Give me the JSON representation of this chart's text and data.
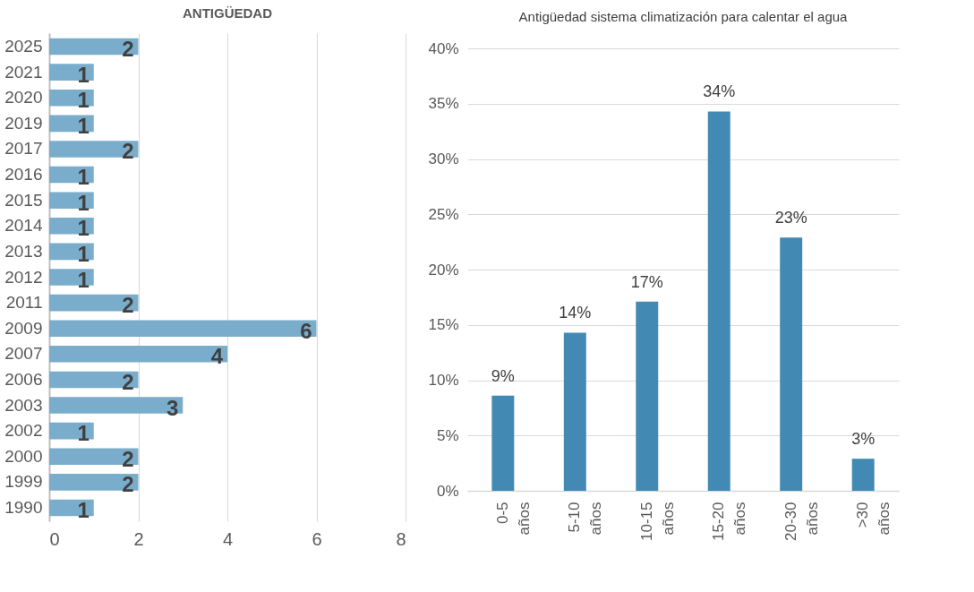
{
  "chart_data": [
    {
      "type": "bar",
      "title": "ANTIGÜEDAD",
      "orientation": "horizontal",
      "categories": [
        "2025",
        "2021",
        "2020",
        "2019",
        "2017",
        "2016",
        "2015",
        "2014",
        "2013",
        "2012",
        "2011",
        "2009",
        "2007",
        "2006",
        "2003",
        "2002",
        "2000",
        "1999",
        "1990"
      ],
      "values": [
        2,
        1,
        1,
        1,
        2,
        1,
        1,
        1,
        1,
        1,
        2,
        6,
        4,
        2,
        3,
        1,
        2,
        2,
        1
      ],
      "color": "#7aadcc",
      "xlim": [
        0,
        8
      ],
      "xticks": [
        0,
        2,
        4,
        6,
        8
      ],
      "grid": "x",
      "data_labels": true
    },
    {
      "type": "bar",
      "title": "Antigüedad sistema climatización para calentar el agua",
      "categories": [
        "0-5 años",
        "5-10 años",
        "10-15 años",
        "15-20 años",
        "20-30 años",
        ">30 años"
      ],
      "values": [
        8.6,
        14.3,
        17.1,
        34.3,
        22.9,
        2.9
      ],
      "value_labels": [
        "9%",
        "14%",
        "17%",
        "34%",
        "23%",
        "3%"
      ],
      "color": "#4289b4",
      "ylim": [
        0,
        40
      ],
      "yticks": [
        {
          "value": 0,
          "label": "0%"
        },
        {
          "value": 5,
          "label": "5%"
        },
        {
          "value": 10,
          "label": "10%"
        },
        {
          "value": 15,
          "label": "15%"
        },
        {
          "value": 20,
          "label": "20%"
        },
        {
          "value": 25,
          "label": "25%"
        },
        {
          "value": 30,
          "label": "30%"
        },
        {
          "value": 35,
          "label": "35%"
        },
        {
          "value": 40,
          "label": "40%"
        }
      ],
      "grid": "y"
    }
  ]
}
